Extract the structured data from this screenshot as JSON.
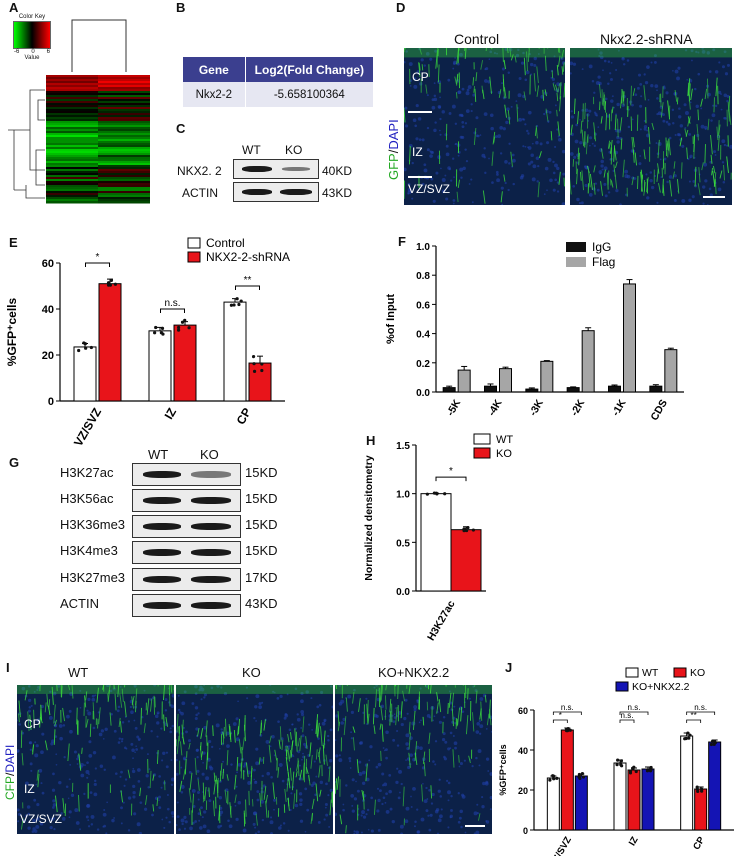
{
  "panels": {
    "A": {
      "label": "A",
      "color_key": "Color Key",
      "key_min": "-6",
      "key_zero": "0",
      "key_max": "6",
      "key_value": "Value"
    },
    "B": {
      "label": "B",
      "header": [
        "Gene",
        "Log2(Fold Change)"
      ],
      "row": [
        "Nkx2-2",
        "-5.658100364"
      ]
    },
    "C": {
      "label": "C",
      "cols": [
        "WT",
        "KO"
      ],
      "rows": [
        {
          "name": "NKX2. 2",
          "size": "40KD"
        },
        {
          "name": "ACTIN",
          "size": "43KD"
        }
      ]
    },
    "D": {
      "label": "D",
      "titles": [
        "Control",
        "Nkx2.2-shRNA"
      ],
      "stain_gfp": "GFP",
      "stain_sep": "/",
      "stain_dapi": "DAPI",
      "zones": [
        "CP",
        "IZ",
        "VZ/SVZ"
      ]
    },
    "E": {
      "label": "E"
    },
    "F": {
      "label": "F"
    },
    "G": {
      "label": "G",
      "cols": [
        "WT",
        "KO"
      ],
      "rows": [
        {
          "name": "H3K27ac",
          "size": "15KD"
        },
        {
          "name": "H3K56ac",
          "size": "15KD"
        },
        {
          "name": "H3K36me3",
          "size": "15KD"
        },
        {
          "name": "H3K4me3",
          "size": "15KD"
        },
        {
          "name": "H3K27me3",
          "size": "17KD"
        },
        {
          "name": "ACTIN",
          "size": "43KD"
        }
      ]
    },
    "H": {
      "label": "H"
    },
    "I": {
      "label": "I",
      "titles": [
        "WT",
        "KO",
        "KO+NKX2.2"
      ],
      "stain_gfp": "CFP",
      "stain_sep": "/",
      "stain_dapi": "DAPI",
      "zones": [
        "CP",
        "IZ",
        "VZ/SVZ"
      ]
    },
    "J": {
      "label": "J"
    }
  },
  "colors": {
    "control": "#ffffff",
    "red": "#e8141a",
    "blue": "#1414b4",
    "igg": "#111111",
    "flag": "#a6a6a6",
    "gfp": "#35d035"
  },
  "chart_data": [
    {
      "panel": "E",
      "type": "bar",
      "categories": [
        "VZ/SVZ",
        "IZ",
        "CP"
      ],
      "ylabel": "%GFP⁺cells",
      "ylim": [
        0,
        60
      ],
      "yticks": [
        0,
        20,
        40,
        60
      ],
      "legend": [
        "Control",
        "NKX2-2-shRNA"
      ],
      "series": [
        {
          "name": "Control",
          "values": [
            23.5,
            30.5,
            43
          ],
          "err": [
            1.5,
            1.5,
            1.5
          ]
        },
        {
          "name": "NKX2-2-shRNA",
          "values": [
            51,
            33,
            16.5
          ],
          "err": [
            2,
            1.5,
            3
          ]
        }
      ],
      "annotations": [
        "*",
        "n.s.",
        "**"
      ]
    },
    {
      "panel": "F",
      "type": "bar",
      "categories": [
        "-5K",
        "-4K",
        "-3K",
        "-2K",
        "-1K",
        "CDS"
      ],
      "ylabel": "%of Input",
      "ylim": [
        0,
        1.0
      ],
      "yticks": [
        "0.0",
        "0.2",
        "0.4",
        "0.6",
        "0.8",
        "1.0"
      ],
      "legend": [
        "IgG",
        "Flag"
      ],
      "series": [
        {
          "name": "IgG",
          "values": [
            0.03,
            0.04,
            0.02,
            0.03,
            0.04,
            0.04
          ],
          "err": [
            0.01,
            0.015,
            0.008,
            0.005,
            0.008,
            0.01
          ]
        },
        {
          "name": "Flag",
          "values": [
            0.15,
            0.16,
            0.21,
            0.42,
            0.74,
            0.29
          ],
          "err": [
            0.025,
            0.01,
            0.005,
            0.02,
            0.03,
            0.01
          ]
        }
      ]
    },
    {
      "panel": "H",
      "type": "bar",
      "categories": [
        "H3K27ac"
      ],
      "ylabel": "Normalized densitometry",
      "ylim": [
        0,
        1.5
      ],
      "yticks": [
        "0.0",
        "0.5",
        "1.0",
        "1.5"
      ],
      "legend": [
        "WT",
        "KO"
      ],
      "series": [
        {
          "name": "WT",
          "values": [
            1.0
          ],
          "err": [
            0.005
          ]
        },
        {
          "name": "KO",
          "values": [
            0.63
          ],
          "err": [
            0.03
          ]
        }
      ],
      "annotations": [
        "*"
      ]
    },
    {
      "panel": "J",
      "type": "bar",
      "categories": [
        "VZ/SVZ",
        "IZ",
        "CP"
      ],
      "ylabel": "%GFP⁺cells",
      "ylim": [
        0,
        60
      ],
      "yticks": [
        0,
        20,
        40,
        60
      ],
      "legend": [
        "WT",
        "KO",
        "KO+NKX2.2"
      ],
      "series": [
        {
          "name": "WT",
          "values": [
            26,
            33.5,
            47
          ],
          "err": [
            1,
            1.5,
            1.5
          ]
        },
        {
          "name": "KO",
          "values": [
            50,
            30,
            20.5
          ],
          "err": [
            1,
            1,
            1
          ]
        },
        {
          "name": "KO+NKX2.2",
          "values": [
            27,
            30.5,
            44
          ],
          "err": [
            1,
            1,
            1
          ]
        }
      ],
      "annotations": [
        "*",
        "n.s.",
        "n.s.",
        "n.s.",
        "**",
        "n.s."
      ]
    }
  ]
}
